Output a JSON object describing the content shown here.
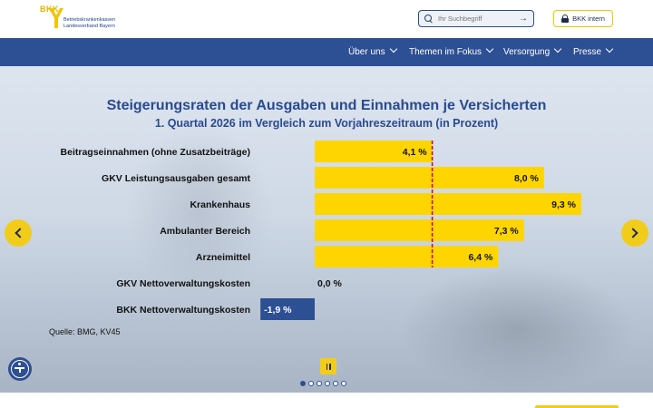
{
  "header": {
    "logo_brand": "BKK",
    "logo_line1": "Betriebskrankenkassen",
    "logo_line2": "Landesverband Bayern",
    "search_placeholder": "Ihr Suchbegriff",
    "intern_label": "BKK intern"
  },
  "nav": {
    "items": [
      {
        "label": "Über uns"
      },
      {
        "label": "Themen im Fokus"
      },
      {
        "label": "Versorgung"
      },
      {
        "label": "Presse"
      }
    ]
  },
  "chart_data": {
    "type": "bar",
    "title": "Steigerungsraten der Ausgaben und Einnahmen je Versicherten",
    "subtitle": "1. Quartal 2026 im Vergleich zum Vorjahreszeitraum (in Prozent)",
    "categories": [
      "Beitragseinnahmen (ohne Zusatzbeiträge)",
      "GKV Leistungsausgaben gesamt",
      "Krankenhaus",
      "Ambulanter Bereich",
      "Arzneimittel",
      "GKV Nettoverwaltungskosten",
      "BKK Nettoverwaltungskosten"
    ],
    "values": [
      4.1,
      8.0,
      9.3,
      7.3,
      6.4,
      0.0,
      -1.9
    ],
    "value_labels": [
      "4,1 %",
      "8,0 %",
      "9,3 %",
      "7,3 %",
      "6,4 %",
      "0,0 %",
      "-1,9 %"
    ],
    "reference_line": 4.1,
    "colors": {
      "positive": "#ffd500",
      "negative": "#2d4f93",
      "reference": "#c8102e"
    },
    "xlim": [
      -1.9,
      9.3
    ],
    "orientation": "horizontal",
    "source": "Quelle: BMG, KV45"
  },
  "colors": {
    "nav_bg": "#2d4f93",
    "accent": "#f2cc1a"
  },
  "slider": {
    "slide_count": 6,
    "active_index": 0
  }
}
